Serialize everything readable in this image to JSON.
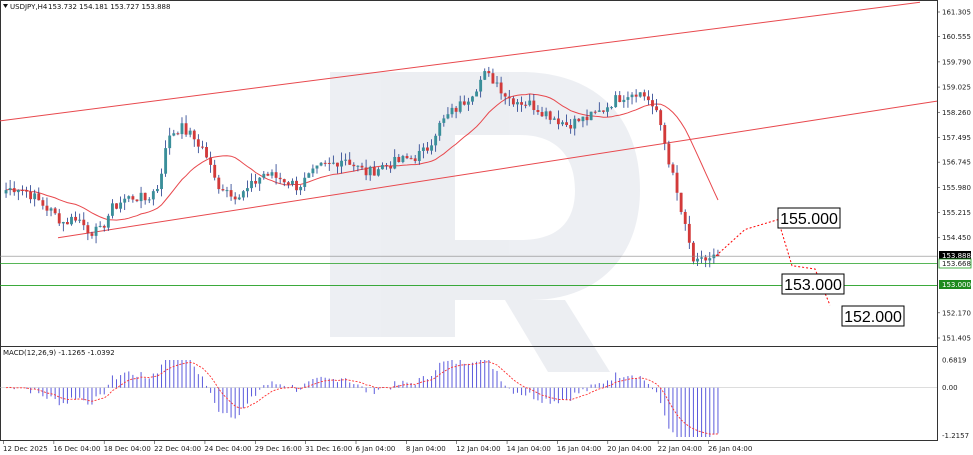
{
  "header": {
    "symbol": "USDJPY,H4",
    "ohlc": "153.732 154.181 153.727 153.888"
  },
  "macd_header": {
    "text": "MACD(12,26,9) -1.1265 -1.0392"
  },
  "colors": {
    "bull_candle": "#3a8f9a",
    "bear_candle": "#d23a3a",
    "channel": "#e8484d",
    "ma": "#e8484d",
    "forecast": "#ff0000",
    "support": "#1f9e1f",
    "macd_hist": "#5b5bdc",
    "macd_signal": "#ff3030",
    "current_price_bg": "#000000",
    "support_price_bg": "#1f8a1f"
  },
  "chart_data": [
    {
      "type": "candlestick",
      "symbol": "USDJPY",
      "timeframe": "H4",
      "ylim": [
        151.405,
        161.305
      ],
      "y_ticks": [
        "161.305",
        "160.555",
        "159.790",
        "159.025",
        "158.260",
        "157.495",
        "156.745",
        "155.980",
        "155.215",
        "154.450",
        "153.000",
        "152.170",
        "151.405"
      ],
      "x_ticks": [
        "12 Dec 2025",
        "16 Dec 04:00",
        "18 Dec 04:00",
        "22 Dec 04:00",
        "24 Dec 04:00",
        "29 Dec 16:00",
        "31 Dec 16:00",
        "6 Jan 04:00",
        "8 Jan 04:00",
        "12 Jan 04:00",
        "14 Jan 04:00",
        "16 Jan 04:00",
        "20 Jan 04:00",
        "22 Jan 04:00",
        "26 Jan 04:00"
      ],
      "close_path": [
        155.9,
        156.0,
        155.8,
        155.5,
        155.2,
        154.9,
        155.1,
        154.7,
        154.6,
        155.3,
        155.6,
        155.7,
        155.6,
        156.0,
        157.6,
        157.8,
        157.5,
        157.1,
        156.1,
        155.9,
        155.7,
        156.0,
        156.4,
        156.3,
        156.2,
        156.0,
        156.3,
        156.6,
        156.7,
        156.9,
        156.6,
        156.4,
        156.6,
        156.7,
        156.8,
        156.9,
        157.1,
        157.8,
        158.2,
        158.5,
        158.9,
        159.4,
        159.2,
        158.7,
        158.6,
        158.5,
        158.3,
        158.1,
        157.9,
        158.0,
        158.1,
        158.3,
        158.6,
        158.8,
        158.9,
        158.7,
        158.0,
        156.5,
        155.0,
        153.6,
        153.8,
        153.9
      ],
      "last_price": "153.888",
      "current_price_label": "153.888",
      "bid_label": "153.668",
      "support_level": "153.000",
      "channel": {
        "upper": {
          "start_price": 158.0,
          "end_price": 161.6
        },
        "lower": {
          "start_price": 154.45,
          "end_price": 158.6
        }
      },
      "forecast_path": [
        153.9,
        154.7,
        155.0,
        153.6,
        153.5,
        152.4
      ],
      "annotations": [
        "155.000",
        "153.000",
        "152.000"
      ]
    },
    {
      "type": "histogram",
      "name": "MACD(12,26,9)",
      "macd_value": "-1.1265",
      "signal_value": "-1.0392",
      "ylim": [
        -1.2157,
        0.6819
      ],
      "y_ticks": [
        "0.6819",
        "0.00",
        "-1.2157"
      ]
    }
  ]
}
